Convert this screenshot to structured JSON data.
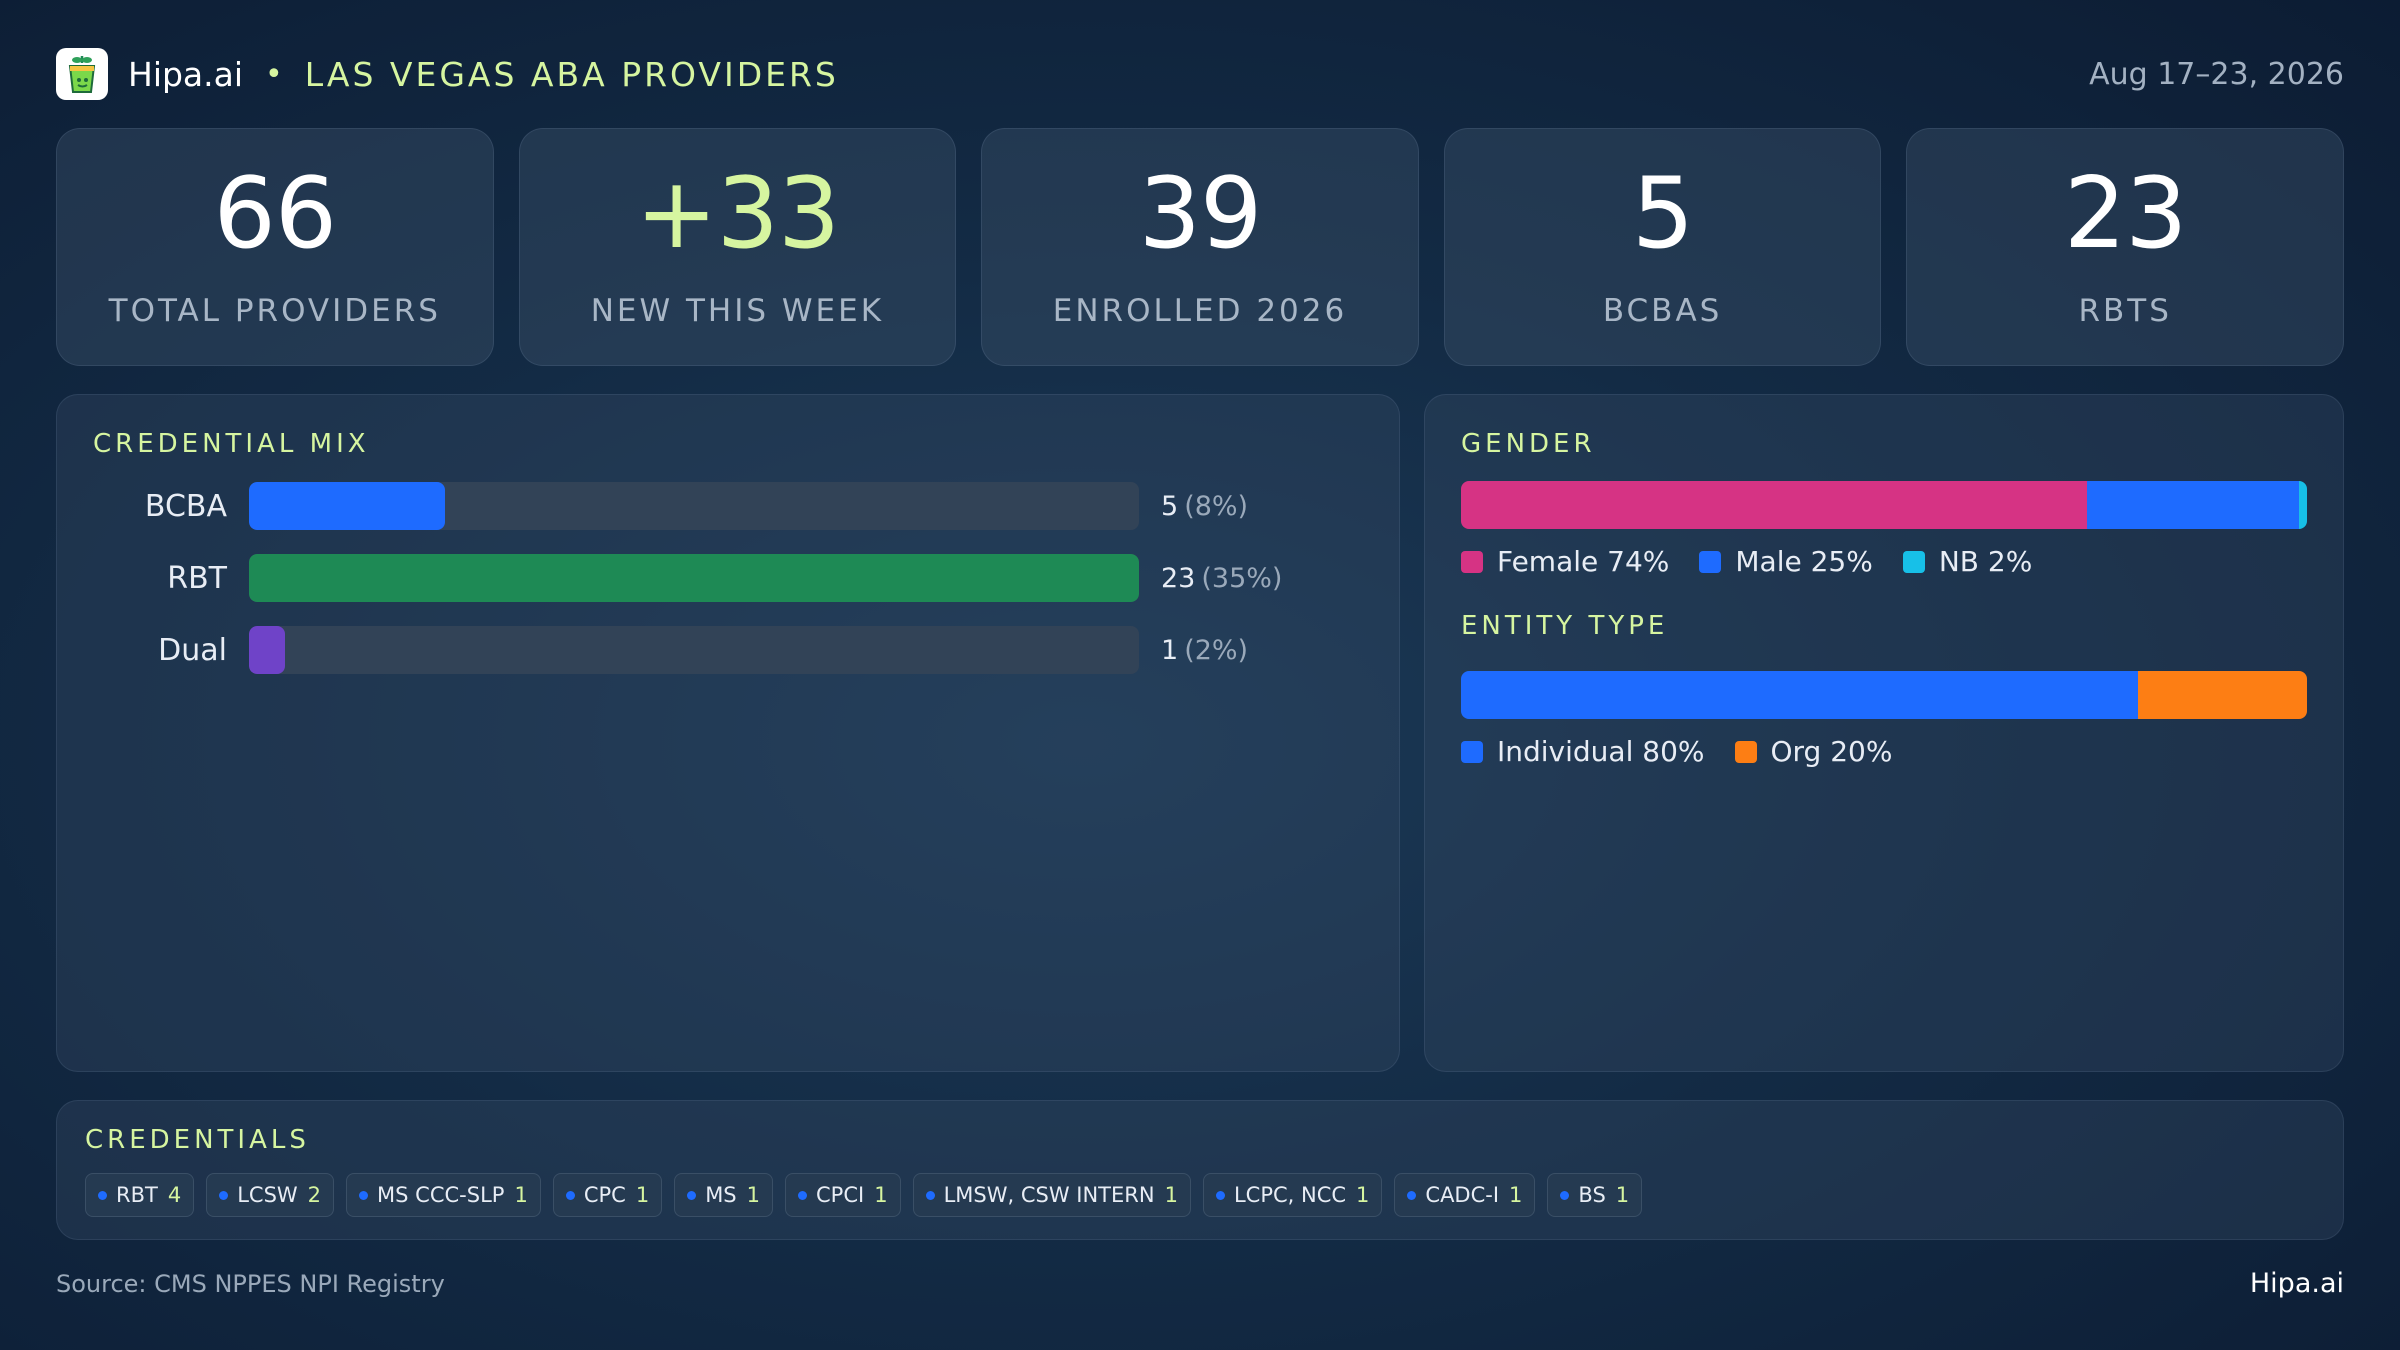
{
  "header": {
    "brand": "Hipa.ai",
    "separator": "•",
    "title": "LAS VEGAS ABA PROVIDERS",
    "date_range": "Aug 17–23, 2026",
    "logo_icon": "green-cup-icon"
  },
  "kpis": [
    {
      "value": "66",
      "label": "TOTAL PROVIDERS"
    },
    {
      "value": "+33",
      "label": "NEW THIS WEEK",
      "accent": true
    },
    {
      "value": "39",
      "label": "ENROLLED 2026"
    },
    {
      "value": "5",
      "label": "BCBAS"
    },
    {
      "value": "23",
      "label": "RBTS"
    }
  ],
  "credential_mix": {
    "title": "CREDENTIAL MIX",
    "rows": [
      {
        "label": "BCBA",
        "count": "5",
        "pct_text": "(8%)",
        "fraction": 0.22,
        "color": "#1e6bff"
      },
      {
        "label": "RBT",
        "count": "23",
        "pct_text": "(35%)",
        "fraction": 1.0,
        "color": "#1e8a55"
      },
      {
        "label": "Dual",
        "count": "1",
        "pct_text": "(2%)",
        "fraction": 0.04,
        "color": "#6f43c8"
      }
    ]
  },
  "gender": {
    "title": "GENDER",
    "segments": [
      {
        "label": "Female 74%",
        "fraction": 0.74,
        "color": "#d63384"
      },
      {
        "label": "Male 25%",
        "fraction": 0.25,
        "color": "#1e6bff"
      },
      {
        "label": "NB 2%",
        "fraction": 0.01,
        "color": "#17c0e8"
      }
    ]
  },
  "entity_type": {
    "title": "ENTITY TYPE",
    "segments": [
      {
        "label": "Individual 80%",
        "fraction": 0.8,
        "color": "#1e6bff"
      },
      {
        "label": "Org 20%",
        "fraction": 0.2,
        "color": "#fd7e14"
      }
    ]
  },
  "credentials": {
    "title": "CREDENTIALS",
    "items": [
      {
        "label": "RBT",
        "count": "4"
      },
      {
        "label": "LCSW",
        "count": "2"
      },
      {
        "label": "MS CCC-SLP",
        "count": "1"
      },
      {
        "label": "CPC",
        "count": "1"
      },
      {
        "label": "MS",
        "count": "1"
      },
      {
        "label": "CPCI",
        "count": "1"
      },
      {
        "label": "LMSW, CSW INTERN",
        "count": "1"
      },
      {
        "label": "LCPC, NCC",
        "count": "1"
      },
      {
        "label": "CADC-I",
        "count": "1"
      },
      {
        "label": "BS",
        "count": "1"
      }
    ]
  },
  "footer": {
    "source": "Source: CMS NPPES NPI Registry",
    "brand": "Hipa.ai"
  }
}
